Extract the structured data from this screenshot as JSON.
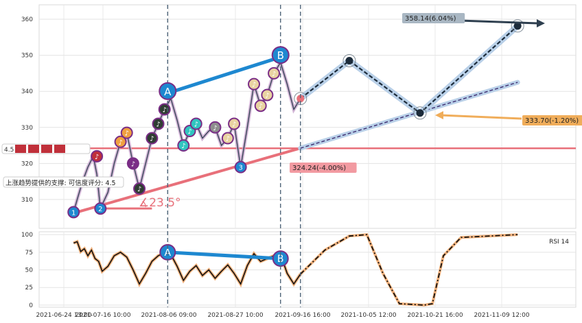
{
  "chart_data": [
    {
      "type": "line",
      "panel": "price",
      "ylim": [
        302,
        364
      ],
      "yticks": [
        310,
        320,
        330,
        340,
        350,
        360
      ],
      "grid": true,
      "annotations": {
        "target_up": "358.14(6.04%)",
        "target_mid": "333.70(-1.20%)",
        "target_low": "324.24(-4.00%)",
        "support_value": "4.5",
        "support_text": "上涨趋势提供的支撑: 可信度评分: 4.5",
        "angle": "∡23.5°",
        "wave_labels": [
          "A",
          "B"
        ],
        "swing_numbers": [
          "1",
          "2",
          "3"
        ]
      },
      "colors": {
        "price_line": "#2e3f4f",
        "trend_line": "#e8707a",
        "support_line": "#e8707a",
        "wave_ab": "#1e88d0",
        "projection": "#1c2b3a",
        "projection_halo": "#b9d0e8",
        "target_up_bg": "#a9b7c3",
        "target_mid_bg": "#f0ad5a",
        "target_low_bg": "#f29aa1"
      },
      "projection_path": [
        {
          "x": "2021-09-16",
          "y": 338.0
        },
        {
          "x": "2021-09-30",
          "y": 348.5
        },
        {
          "x": "2021-10-18",
          "y": 334.0
        },
        {
          "x": "2021-11-14",
          "y": 358.14
        }
      ],
      "trend_channel": [
        {
          "x": "2021-07-02",
          "y": 306.5
        },
        {
          "x": "2021-09-16",
          "y": 324.24
        },
        {
          "x": "2021-11-14",
          "y": 342.5
        }
      ],
      "support_level": 324.2,
      "wave_A_B_line": [
        {
          "x": "2021-08-06",
          "y": 339.5
        },
        {
          "x": "2021-09-10",
          "y": 349.5
        }
      ],
      "price_series": [
        [
          "2021-06-30",
          306.5
        ],
        [
          "2021-07-02",
          310
        ],
        [
          "2021-07-05",
          315
        ],
        [
          "2021-07-08",
          319
        ],
        [
          "2021-07-11",
          322
        ],
        [
          "2021-07-13",
          317
        ],
        [
          "2021-07-15",
          307.5
        ],
        [
          "2021-07-18",
          312
        ],
        [
          "2021-07-20",
          320
        ],
        [
          "2021-07-22",
          326
        ],
        [
          "2021-07-24",
          328.5
        ],
        [
          "2021-07-26",
          320
        ],
        [
          "2021-07-28",
          313
        ],
        [
          "2021-07-30",
          320
        ],
        [
          "2021-08-01",
          327
        ],
        [
          "2021-08-03",
          331
        ],
        [
          "2021-08-05",
          335
        ],
        [
          "2021-08-07",
          338
        ],
        [
          "2021-08-09",
          332
        ],
        [
          "2021-08-11",
          325
        ],
        [
          "2021-08-13",
          329
        ],
        [
          "2021-08-15",
          331
        ],
        [
          "2021-08-17",
          327
        ],
        [
          "2021-08-19",
          329
        ],
        [
          "2021-08-21",
          330
        ],
        [
          "2021-08-23",
          325
        ],
        [
          "2021-08-25",
          327
        ],
        [
          "2021-08-27",
          331
        ],
        [
          "2021-08-29",
          319
        ],
        [
          "2021-08-31",
          330
        ],
        [
          "2021-09-02",
          342
        ],
        [
          "2021-09-04",
          336
        ],
        [
          "2021-09-06",
          339
        ],
        [
          "2021-09-08",
          345
        ],
        [
          "2021-09-10",
          348
        ],
        [
          "2021-09-12",
          342
        ],
        [
          "2021-09-14",
          335
        ],
        [
          "2021-09-16",
          338
        ]
      ],
      "xticks": [
        "2021-06-24 13:00",
        "2021-07-16 10:00",
        "2021-08-06 09:00",
        "2021-08-27 10:00",
        "2021-09-16 16:00",
        "2021-10-05 12:00",
        "2021-10-21 16:00",
        "2021-11-09 12:00"
      ]
    },
    {
      "type": "line",
      "panel": "rsi",
      "ylim": [
        -3,
        104
      ],
      "yticks": [
        0,
        25,
        50,
        75,
        100
      ],
      "legend": "RSI 14",
      "wave_labels": [
        "A",
        "B"
      ],
      "rsi_series": [
        [
          "2021-06-30",
          88
        ],
        [
          "2021-07-02",
          90
        ],
        [
          "2021-07-04",
          76
        ],
        [
          "2021-07-06",
          80
        ],
        [
          "2021-07-08",
          70
        ],
        [
          "2021-07-10",
          78
        ],
        [
          "2021-07-12",
          66
        ],
        [
          "2021-07-14",
          62
        ],
        [
          "2021-07-16",
          48
        ],
        [
          "2021-07-18",
          55
        ],
        [
          "2021-07-20",
          70
        ],
        [
          "2021-07-22",
          75
        ],
        [
          "2021-07-24",
          68
        ],
        [
          "2021-07-26",
          50
        ],
        [
          "2021-07-28",
          30
        ],
        [
          "2021-07-30",
          45
        ],
        [
          "2021-08-01",
          62
        ],
        [
          "2021-08-03",
          70
        ],
        [
          "2021-08-05",
          74
        ],
        [
          "2021-08-07",
          72
        ],
        [
          "2021-08-09",
          55
        ],
        [
          "2021-08-11",
          35
        ],
        [
          "2021-08-13",
          48
        ],
        [
          "2021-08-15",
          56
        ],
        [
          "2021-08-17",
          42
        ],
        [
          "2021-08-19",
          50
        ],
        [
          "2021-08-21",
          38
        ],
        [
          "2021-08-23",
          48
        ],
        [
          "2021-08-25",
          57
        ],
        [
          "2021-08-27",
          45
        ],
        [
          "2021-08-29",
          30
        ],
        [
          "2021-08-31",
          56
        ],
        [
          "2021-09-02",
          73
        ],
        [
          "2021-09-04",
          62
        ],
        [
          "2021-09-06",
          66
        ],
        [
          "2021-09-08",
          70
        ],
        [
          "2021-09-10",
          72
        ],
        [
          "2021-09-12",
          45
        ],
        [
          "2021-09-14",
          30
        ],
        [
          "2021-09-16",
          44
        ]
      ],
      "rsi_projection": [
        [
          "2021-09-16",
          44
        ],
        [
          "2021-09-23",
          78
        ],
        [
          "2021-09-30",
          98
        ],
        [
          "2021-10-05",
          100
        ],
        [
          "2021-10-09",
          45
        ],
        [
          "2021-10-13",
          2
        ],
        [
          "2021-10-19",
          0
        ],
        [
          "2021-10-21",
          2
        ],
        [
          "2021-10-24",
          70
        ],
        [
          "2021-10-29",
          96
        ],
        [
          "2021-11-14",
          100
        ]
      ],
      "wave_A_B_line": [
        {
          "x": "2021-08-06",
          "y": 75
        },
        {
          "x": "2021-09-10",
          "y": 66
        }
      ]
    }
  ]
}
